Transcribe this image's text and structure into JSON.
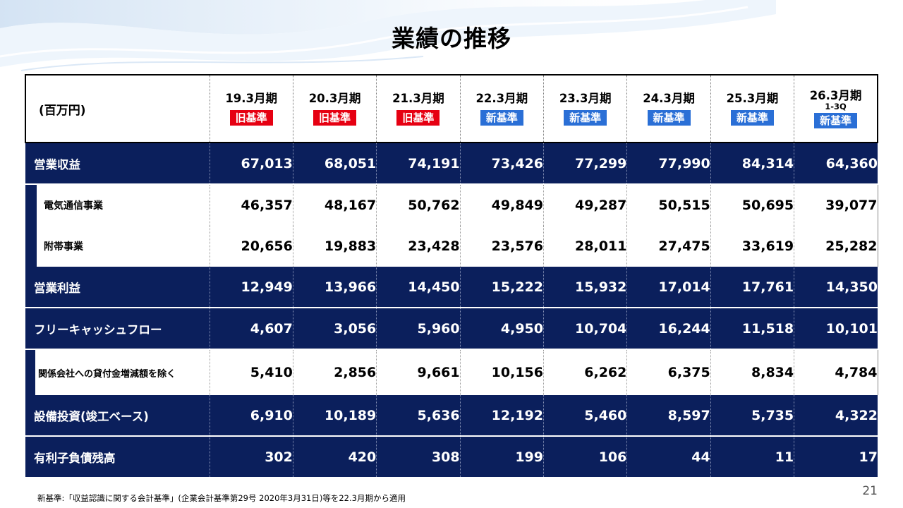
{
  "title": "業績の推移",
  "table": {
    "unit_label": "(百万円)",
    "columns": [
      {
        "period": "19.3月期",
        "sub": "",
        "standard": "旧基準",
        "kind": "old"
      },
      {
        "period": "20.3月期",
        "sub": "",
        "standard": "旧基準",
        "kind": "old"
      },
      {
        "period": "21.3月期",
        "sub": "",
        "standard": "旧基準",
        "kind": "old"
      },
      {
        "period": "22.3月期",
        "sub": "",
        "standard": "新基準",
        "kind": "new"
      },
      {
        "period": "23.3月期",
        "sub": "",
        "standard": "新基準",
        "kind": "new"
      },
      {
        "period": "24.3月期",
        "sub": "",
        "standard": "新基準",
        "kind": "new"
      },
      {
        "period": "25.3月期",
        "sub": "",
        "standard": "新基準",
        "kind": "new"
      },
      {
        "period": "26.3月期",
        "sub": "1-3Q",
        "standard": "新基準",
        "kind": "new"
      }
    ],
    "rows": [
      {
        "label": "営業収益",
        "type": "main",
        "values": [
          "67,013",
          "68,051",
          "74,191",
          "73,426",
          "77,299",
          "77,990",
          "84,314",
          "64,360"
        ]
      },
      {
        "label": "電気通信事業",
        "type": "sub",
        "values": [
          "46,357",
          "48,167",
          "50,762",
          "49,849",
          "49,287",
          "50,515",
          "50,695",
          "39,077"
        ]
      },
      {
        "label": "附帯事業",
        "type": "sub",
        "values": [
          "20,656",
          "19,883",
          "23,428",
          "23,576",
          "28,011",
          "27,475",
          "33,619",
          "25,282"
        ]
      },
      {
        "label": "営業利益",
        "type": "main",
        "values": [
          "12,949",
          "13,966",
          "14,450",
          "15,222",
          "15,932",
          "17,014",
          "17,761",
          "14,350"
        ]
      },
      {
        "label": "フリーキャッシュフロー",
        "type": "main",
        "values": [
          "4,607",
          "3,056",
          "5,960",
          "4,950",
          "10,704",
          "16,244",
          "11,518",
          "10,101"
        ]
      },
      {
        "label": "関係会社への貸付金増減額を除く",
        "type": "sub-tall",
        "values": [
          "5,410",
          "2,856",
          "9,661",
          "10,156",
          "6,262",
          "6,375",
          "8,834",
          "4,784"
        ]
      },
      {
        "label": "設備投資(竣工ベース)",
        "type": "main",
        "values": [
          "6,910",
          "10,189",
          "5,636",
          "12,192",
          "5,460",
          "8,597",
          "5,735",
          "4,322"
        ]
      },
      {
        "label": "有利子負債残高",
        "type": "main",
        "values": [
          "302",
          "420",
          "308",
          "199",
          "106",
          "44",
          "11",
          "17"
        ]
      }
    ]
  },
  "footnote": "新基準:「収益認識に関する会計基準」(企業会計基準第29号 2020年3月31日)等を22.3月期から適用",
  "page_number": "21",
  "colors": {
    "navy": "#0b1f5c",
    "old_badge": "#e60012",
    "new_badge": "#2a6fd6"
  }
}
